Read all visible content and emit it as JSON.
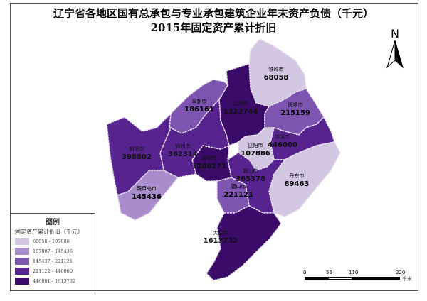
{
  "title": {
    "line1": "辽宁省各地区国有总承包与专业承包建筑企业年末资产负债（千元）",
    "line2": "2015年固定资产累计折旧"
  },
  "north_arrow": {
    "label": "N",
    "icon": "north-arrow-icon"
  },
  "legend": {
    "title": "图例",
    "subtitle": "固定资产累计折旧（千元）",
    "classes": [
      {
        "range": "68058  -  107886",
        "color": "#d2c6e2"
      },
      {
        "range": "107887  -  145436",
        "color": "#a98ccb"
      },
      {
        "range": "145437  -  221121",
        "color": "#7d55b0"
      },
      {
        "range": "221122  -  446000",
        "color": "#57248f"
      },
      {
        "range": "446001  -  1613732",
        "color": "#3a0b68"
      }
    ]
  },
  "scale_bar": {
    "ticks": [
      "0",
      "55",
      "110",
      "220"
    ],
    "unit": "千米"
  },
  "regions": [
    {
      "name": "铁岭市",
      "value": "68058",
      "class": 0
    },
    {
      "name": "沈阳市",
      "value": "1323744",
      "class": 4
    },
    {
      "name": "阜新市",
      "value": "186161",
      "class": 2
    },
    {
      "name": "抚顺市",
      "value": "215159",
      "class": 2
    },
    {
      "name": "本溪市",
      "value": "446000",
      "class": 3
    },
    {
      "name": "丹东市",
      "value": "89463",
      "class": 0
    },
    {
      "name": "辽阳市",
      "value": "107886",
      "class": 0
    },
    {
      "name": "鞍山市",
      "value": "365378",
      "class": 3
    },
    {
      "name": "营口市",
      "value": "221121",
      "class": 2
    },
    {
      "name": "大连市",
      "value": "1613732",
      "class": 4
    },
    {
      "name": "盘锦市",
      "value": "1286271",
      "class": 4
    },
    {
      "name": "锦州市",
      "value": "362314",
      "class": 3
    },
    {
      "name": "朝阳市",
      "value": "398802",
      "class": 3
    },
    {
      "name": "葫芦岛市",
      "value": "145436",
      "class": 1
    }
  ]
}
